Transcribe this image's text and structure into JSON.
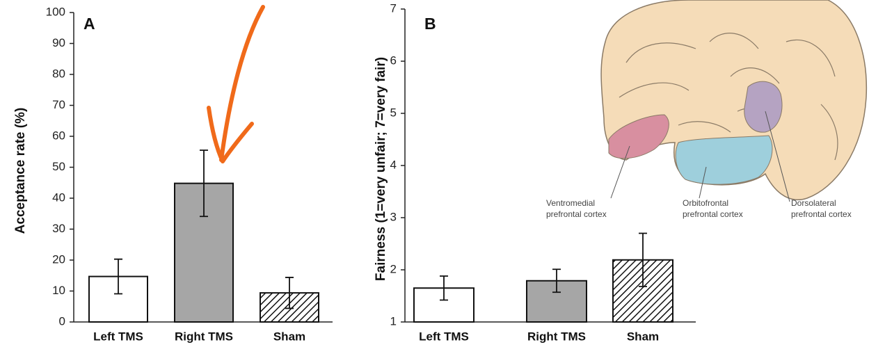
{
  "chart_data": [
    {
      "type": "bar",
      "panel": "A",
      "ylabel": "Acceptance rate (%)",
      "categories": [
        "Left TMS",
        "Right TMS",
        "Sham"
      ],
      "values": [
        14.7,
        44.8,
        9.4
      ],
      "errors": [
        5.6,
        10.7,
        5.0
      ],
      "fills": [
        "#ffffff",
        "#a6a6a6",
        "hatched"
      ],
      "ylim": [
        0,
        100
      ],
      "yticks": [
        0,
        10,
        20,
        30,
        40,
        50,
        60,
        70,
        80,
        90,
        100
      ]
    },
    {
      "type": "bar",
      "panel": "B",
      "ylabel": "Fairness (1=very unfair; 7=very fair)",
      "categories": [
        "Left TMS",
        "Right TMS",
        "Sham"
      ],
      "values": [
        1.65,
        1.79,
        2.19
      ],
      "errors": [
        0.23,
        0.22,
        0.51
      ],
      "fills": [
        "#ffffff",
        "#a6a6a6",
        "hatched"
      ],
      "ylim": [
        1,
        7
      ],
      "yticks": [
        1,
        2,
        3,
        4,
        5,
        6,
        7
      ]
    }
  ],
  "illustration": {
    "labels": [
      [
        "Ventromedial",
        "prefrontal cortex"
      ],
      [
        "Orbitofrontal",
        "prefrontal cortex"
      ],
      [
        "Dorsolateral",
        "prefrontal cortex"
      ]
    ]
  }
}
